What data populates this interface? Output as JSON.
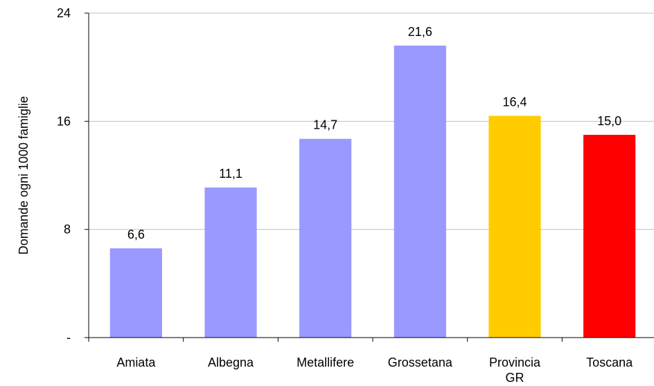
{
  "chart_data": {
    "type": "bar",
    "title": "",
    "xlabel": "",
    "ylabel": "Domande ogni 1000 famiglie",
    "categories": [
      [
        "Amiata"
      ],
      [
        "Albegna"
      ],
      [
        "Metallifere"
      ],
      [
        "Grossetana"
      ],
      [
        "Provincia",
        "GR"
      ],
      [
        "Toscana"
      ]
    ],
    "values": [
      6.6,
      11.1,
      14.7,
      21.6,
      16.4,
      15.0
    ],
    "value_labels": [
      "6,6",
      "11,1",
      "14,7",
      "21,6",
      "16,4",
      "15,0"
    ],
    "colors": [
      "#9999ff",
      "#9999ff",
      "#9999ff",
      "#9999ff",
      "#ffcc00",
      "#ff0000"
    ],
    "ylim": [
      0,
      24
    ],
    "yticks": [
      0,
      8,
      16,
      24
    ],
    "ytick_labels": [
      "-",
      "8",
      "16",
      "24"
    ],
    "grid": true,
    "gridline_color": "#c0c0c0",
    "legend": "none"
  }
}
